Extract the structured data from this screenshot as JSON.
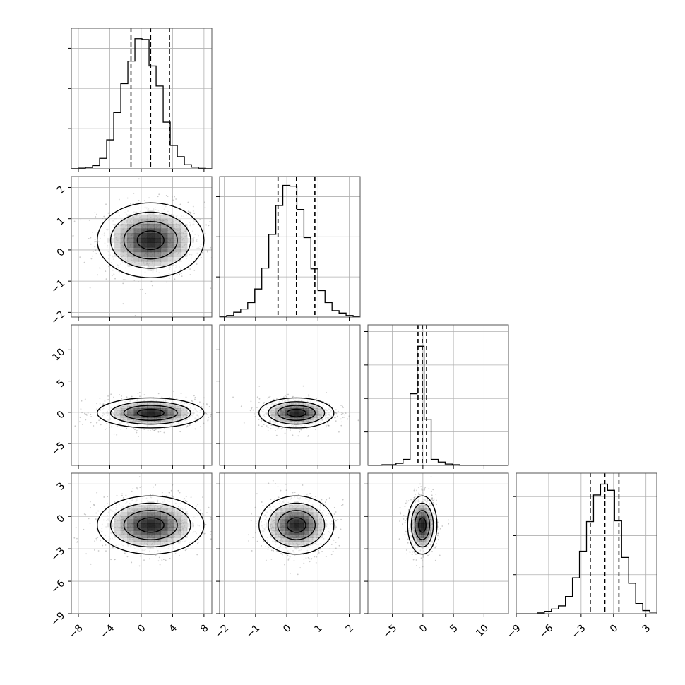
{
  "chart_data": {
    "type": "corner",
    "parameters": [
      {
        "xlim": [
          -8.9,
          9.0
        ],
        "xticks": [
          -8,
          -4,
          0,
          4,
          8
        ],
        "xtick_labels": [
          "−8",
          "−4",
          "0",
          "4",
          "8"
        ],
        "quantiles": [
          -1.3,
          1.2,
          3.6
        ],
        "hist_edges": [
          -8.9,
          -8.0,
          -7.1,
          -6.2,
          -5.3,
          -4.4,
          -3.5,
          -2.6,
          -1.7,
          -0.8,
          0.1,
          1.0,
          1.9,
          2.8,
          3.7,
          4.6,
          5.5,
          6.4,
          7.3,
          8.2,
          9.0
        ],
        "hist_counts": [
          0.2,
          0.7,
          1.7,
          4,
          13,
          36,
          70,
          106,
          134,
          162,
          161,
          128,
          103,
          58,
          29,
          15,
          5,
          2,
          0.5,
          0.2
        ],
        "hist_ymax": 175
      },
      {
        "xlim": [
          -2.15,
          2.35
        ],
        "xticks": [
          -2,
          -1,
          0,
          1,
          2
        ],
        "xtick_labels": [
          "−2",
          "−1",
          "0",
          "1",
          "2"
        ],
        "ylim": [
          -2.15,
          2.35
        ],
        "yticks": [
          -2,
          -1,
          0,
          1,
          2
        ],
        "ytick_labels": [
          "−2",
          "−1",
          "0",
          "1",
          "2"
        ],
        "quantiles": [
          -0.28,
          0.31,
          0.9
        ],
        "hist_edges": [
          -2.15,
          -1.925,
          -1.7,
          -1.475,
          -1.25,
          -1.025,
          -0.8,
          -0.575,
          -0.35,
          -0.125,
          0.1,
          0.325,
          0.55,
          0.775,
          1.0,
          1.225,
          1.45,
          1.675,
          1.9,
          2.125,
          2.35
        ],
        "hist_counts": [
          1,
          2,
          6,
          10,
          18,
          35,
          61,
          103,
          139,
          164,
          163,
          134,
          99,
          60,
          33,
          18,
          8,
          5,
          2,
          1
        ],
        "hist_ymax": 175
      },
      {
        "xlim": [
          -9.0,
          14.0
        ],
        "xticks": [
          -5,
          0,
          5,
          10
        ],
        "xtick_labels": [
          "−5",
          "0",
          "5",
          "10"
        ],
        "ylim": [
          -8.5,
          14.0
        ],
        "yticks": [
          -5,
          0,
          5,
          10
        ],
        "ytick_labels": [
          "−5",
          "0",
          "5",
          "10"
        ],
        "quantiles": [
          -0.8,
          -0.1,
          0.6
        ],
        "hist_edges": [
          -9.0,
          -7.85,
          -6.7,
          -5.55,
          -4.4,
          -3.25,
          -2.1,
          -0.95,
          0.2,
          1.35,
          2.5,
          3.65,
          4.8,
          5.95,
          7.1,
          8.25,
          9.4,
          10.55,
          11.7,
          12.85,
          14.0
        ],
        "hist_counts": [
          0,
          0,
          1,
          1,
          3,
          9,
          107,
          178,
          69,
          9,
          5,
          2,
          1,
          0,
          0,
          0,
          0,
          0,
          0,
          0
        ],
        "hist_ymax": 210
      },
      {
        "xlim": [
          -9.0,
          4.0
        ],
        "xticks": [
          -9,
          -6,
          -3,
          0,
          3
        ],
        "xtick_labels": [
          "−9",
          "−6",
          "−3",
          "0",
          "3"
        ],
        "ylim": [
          -9.0,
          4.0
        ],
        "yticks": [
          -9,
          -6,
          -3,
          0,
          3
        ],
        "ytick_labels": [
          "−9",
          "−6",
          "−3",
          "0",
          "3"
        ],
        "quantiles": [
          -2.15,
          -0.8,
          0.5
        ],
        "hist_edges": [
          -9.0,
          -8.35,
          -7.7,
          -7.05,
          -6.4,
          -5.75,
          -5.1,
          -4.45,
          -3.8,
          -3.15,
          -2.5,
          -1.85,
          -1.2,
          -0.55,
          0.1,
          0.75,
          1.4,
          2.05,
          2.7,
          3.35,
          4.0
        ],
        "hist_counts": [
          0,
          0,
          0,
          1,
          3,
          6,
          10,
          22,
          46,
          80,
          118,
          152,
          166,
          158,
          119,
          72,
          39,
          13,
          4,
          2
        ],
        "hist_ymax": 180
      }
    ],
    "pairs": [
      {
        "row": 1,
        "col": 0,
        "mean": [
          1.2,
          0.31
        ],
        "sd": [
          3.4,
          0.6
        ],
        "rho": 0.0
      },
      {
        "row": 2,
        "col": 0,
        "mean": [
          1.2,
          -0.1
        ],
        "sd": [
          3.4,
          1.2
        ],
        "rho": 0.0
      },
      {
        "row": 2,
        "col": 1,
        "mean": [
          0.31,
          -0.1
        ],
        "sd": [
          0.6,
          1.2
        ],
        "rho": 0.0
      },
      {
        "row": 3,
        "col": 0,
        "mean": [
          1.2,
          -0.8
        ],
        "sd": [
          3.4,
          1.35
        ],
        "rho": 0.0
      },
      {
        "row": 3,
        "col": 1,
        "mean": [
          0.31,
          -0.8
        ],
        "sd": [
          0.6,
          1.35
        ],
        "rho": 0.0
      },
      {
        "row": 3,
        "col": 2,
        "mean": [
          -0.1,
          -0.8
        ],
        "sd": [
          1.2,
          1.35
        ],
        "rho": 0.0
      }
    ],
    "contour_sigma_levels": [
      0.5,
      1.0,
      1.5,
      2.0
    ],
    "grid": true,
    "colors": {
      "line": "#000000",
      "grid": "#b0b0b0",
      "frame": "#555555",
      "density": "#000000"
    }
  }
}
